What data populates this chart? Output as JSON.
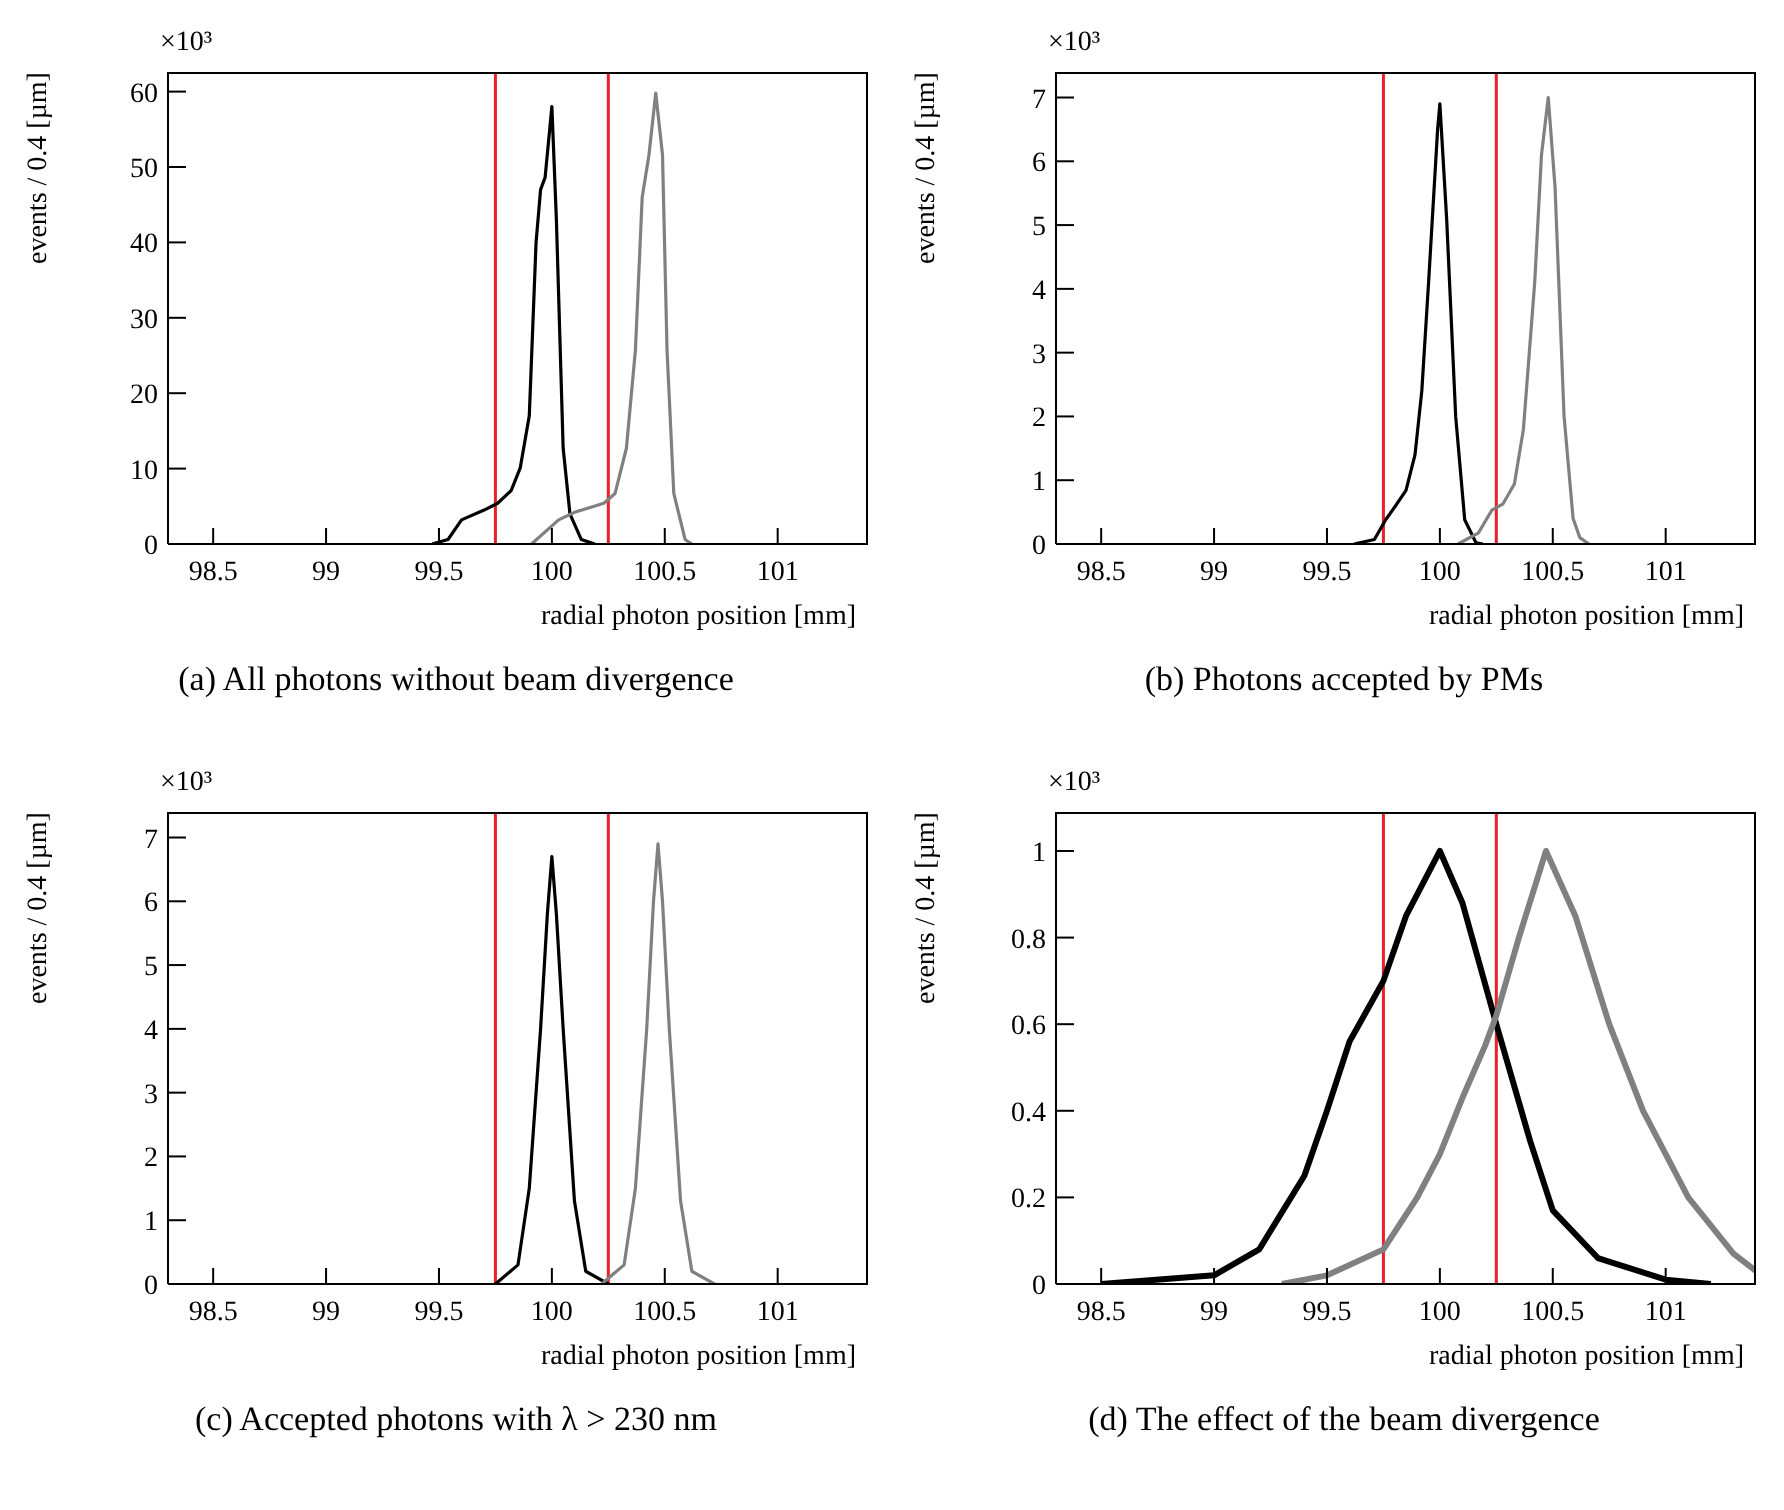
{
  "chart_data": [
    {
      "type": "line",
      "title": "(a) All photons without beam divergence",
      "xlabel": "radial photon position [mm]",
      "ylabel": "events / 0.4 [µm]",
      "annotations": [
        "×10³"
      ],
      "xlim": [
        98.3,
        101.4
      ],
      "xticks": [
        98.5,
        99,
        99.5,
        100,
        100.5,
        101
      ],
      "ylim": [
        0,
        62.6
      ],
      "yticks": [
        0,
        10,
        20,
        30,
        40,
        50,
        60
      ],
      "marker": "none",
      "ref_lines": [
        {
          "axis": "x",
          "value": 99.75,
          "color": "#e8202a"
        },
        {
          "axis": "x",
          "value": 100.25,
          "color": "#e8202a"
        }
      ],
      "series": [
        {
          "color": "#000000",
          "x": [
            99.47,
            99.54,
            99.6,
            99.7,
            99.76,
            99.82,
            99.86,
            99.9,
            99.93,
            99.95,
            99.97,
            100.0,
            100.02,
            100.05,
            100.08,
            100.13,
            100.19
          ],
          "values": [
            0,
            0.6,
            3.2,
            4.5,
            5.4,
            7.1,
            10.1,
            17,
            40,
            47,
            48.6,
            58,
            43,
            12.7,
            4,
            0.6,
            0
          ]
        },
        {
          "color": "#808080",
          "x": [
            99.91,
            100.03,
            100.1,
            100.23,
            100.28,
            100.33,
            100.37,
            100.4,
            100.43,
            100.46,
            100.49,
            100.51,
            100.54,
            100.59,
            100.62
          ],
          "values": [
            0,
            3.2,
            4.2,
            5.4,
            6.7,
            12.7,
            25.7,
            46,
            51.6,
            59.8,
            51.6,
            25.7,
            6.7,
            0.6,
            0
          ]
        }
      ]
    },
    {
      "type": "line",
      "title": "(b) Photons accepted by PMs",
      "xlabel": "radial photon position [mm]",
      "ylabel": "events / 0.4 [µm]",
      "annotations": [
        "×10³"
      ],
      "xlim": [
        98.3,
        101.4
      ],
      "xticks": [
        98.5,
        99,
        99.5,
        100,
        100.5,
        101
      ],
      "ylim": [
        0,
        7.4
      ],
      "yticks": [
        0,
        1,
        2,
        3,
        4,
        5,
        6,
        7
      ],
      "marker": "none",
      "ref_lines": [
        {
          "axis": "x",
          "value": 99.75,
          "color": "#e8202a"
        },
        {
          "axis": "x",
          "value": 100.25,
          "color": "#e8202a"
        }
      ],
      "series": [
        {
          "color": "#000000",
          "x": [
            99.62,
            99.71,
            99.76,
            99.8,
            99.85,
            99.89,
            99.92,
            99.95,
            99.99,
            100.0,
            100.03,
            100.07,
            100.11,
            100.16,
            100.19
          ],
          "values": [
            0,
            0.07,
            0.38,
            0.58,
            0.84,
            1.4,
            2.4,
            4.1,
            6.5,
            6.9,
            5.1,
            2.0,
            0.38,
            0.02,
            0
          ]
        },
        {
          "color": "#808080",
          "x": [
            100.08,
            100.17,
            100.23,
            100.28,
            100.33,
            100.37,
            100.42,
            100.45,
            100.48,
            100.51,
            100.55,
            100.59,
            100.62,
            100.66
          ],
          "values": [
            0,
            0.17,
            0.53,
            0.63,
            0.94,
            1.8,
            4.1,
            6.1,
            7.0,
            5.6,
            2.0,
            0.4,
            0.1,
            0
          ]
        }
      ]
    },
    {
      "type": "line",
      "title": "(c) Accepted photons with λ > 230 nm",
      "xlabel": "radial photon position [mm]",
      "ylabel": "events / 0.4 [µm]",
      "annotations": [
        "×10³"
      ],
      "xlim": [
        98.3,
        101.4
      ],
      "xticks": [
        98.5,
        99,
        99.5,
        100,
        100.5,
        101
      ],
      "ylim": [
        0,
        7.4
      ],
      "yticks": [
        0,
        1,
        2,
        3,
        4,
        5,
        6,
        7
      ],
      "marker": "none",
      "ref_lines": [
        {
          "axis": "x",
          "value": 99.75,
          "color": "#e8202a"
        },
        {
          "axis": "x",
          "value": 100.25,
          "color": "#e8202a"
        }
      ],
      "series": [
        {
          "color": "#000000",
          "x": [
            99.75,
            99.85,
            99.9,
            99.95,
            99.98,
            100.0,
            100.02,
            100.05,
            100.1,
            100.15,
            100.25
          ],
          "values": [
            0,
            0.3,
            1.5,
            4,
            5.8,
            6.7,
            5.8,
            4,
            1.3,
            0.2,
            0
          ]
        },
        {
          "color": "#808080",
          "x": [
            100.22,
            100.32,
            100.37,
            100.42,
            100.45,
            100.47,
            100.49,
            100.52,
            100.57,
            100.62,
            100.72
          ],
          "values": [
            0,
            0.3,
            1.5,
            4,
            6.0,
            6.9,
            6.0,
            4,
            1.3,
            0.2,
            0
          ]
        }
      ]
    },
    {
      "type": "line",
      "title": "(d) The effect of the beam divergence",
      "xlabel": "radial photon position [mm]",
      "ylabel": "events / 0.4 [µm]",
      "annotations": [
        "×10³"
      ],
      "xlim": [
        98.3,
        101.4
      ],
      "xticks": [
        98.5,
        99,
        99.5,
        100,
        100.5,
        101
      ],
      "ylim": [
        0,
        1.09
      ],
      "yticks": [
        0,
        0.2,
        0.4,
        0.6,
        0.8,
        1
      ],
      "marker": "none",
      "ref_lines": [
        {
          "axis": "x",
          "value": 99.75,
          "color": "#e8202a"
        },
        {
          "axis": "x",
          "value": 100.25,
          "color": "#e8202a"
        }
      ],
      "series": [
        {
          "color": "#000000",
          "x": [
            98.5,
            99.0,
            99.2,
            99.4,
            99.5,
            99.6,
            99.75,
            99.85,
            100.0,
            100.1,
            100.25,
            100.4,
            100.5,
            100.7,
            101.0,
            101.2
          ],
          "values": [
            0,
            0.02,
            0.08,
            0.25,
            0.4,
            0.56,
            0.7,
            0.85,
            1.0,
            0.88,
            0.6,
            0.33,
            0.17,
            0.06,
            0.01,
            0
          ]
        },
        {
          "color": "#808080",
          "x": [
            99.3,
            99.5,
            99.75,
            99.9,
            100.0,
            100.1,
            100.2,
            100.25,
            100.35,
            100.47,
            100.6,
            100.75,
            100.9,
            101.1,
            101.3,
            101.4
          ],
          "values": [
            0,
            0.02,
            0.08,
            0.2,
            0.3,
            0.43,
            0.55,
            0.62,
            0.8,
            1.0,
            0.85,
            0.6,
            0.4,
            0.2,
            0.07,
            0.03
          ]
        }
      ]
    }
  ]
}
